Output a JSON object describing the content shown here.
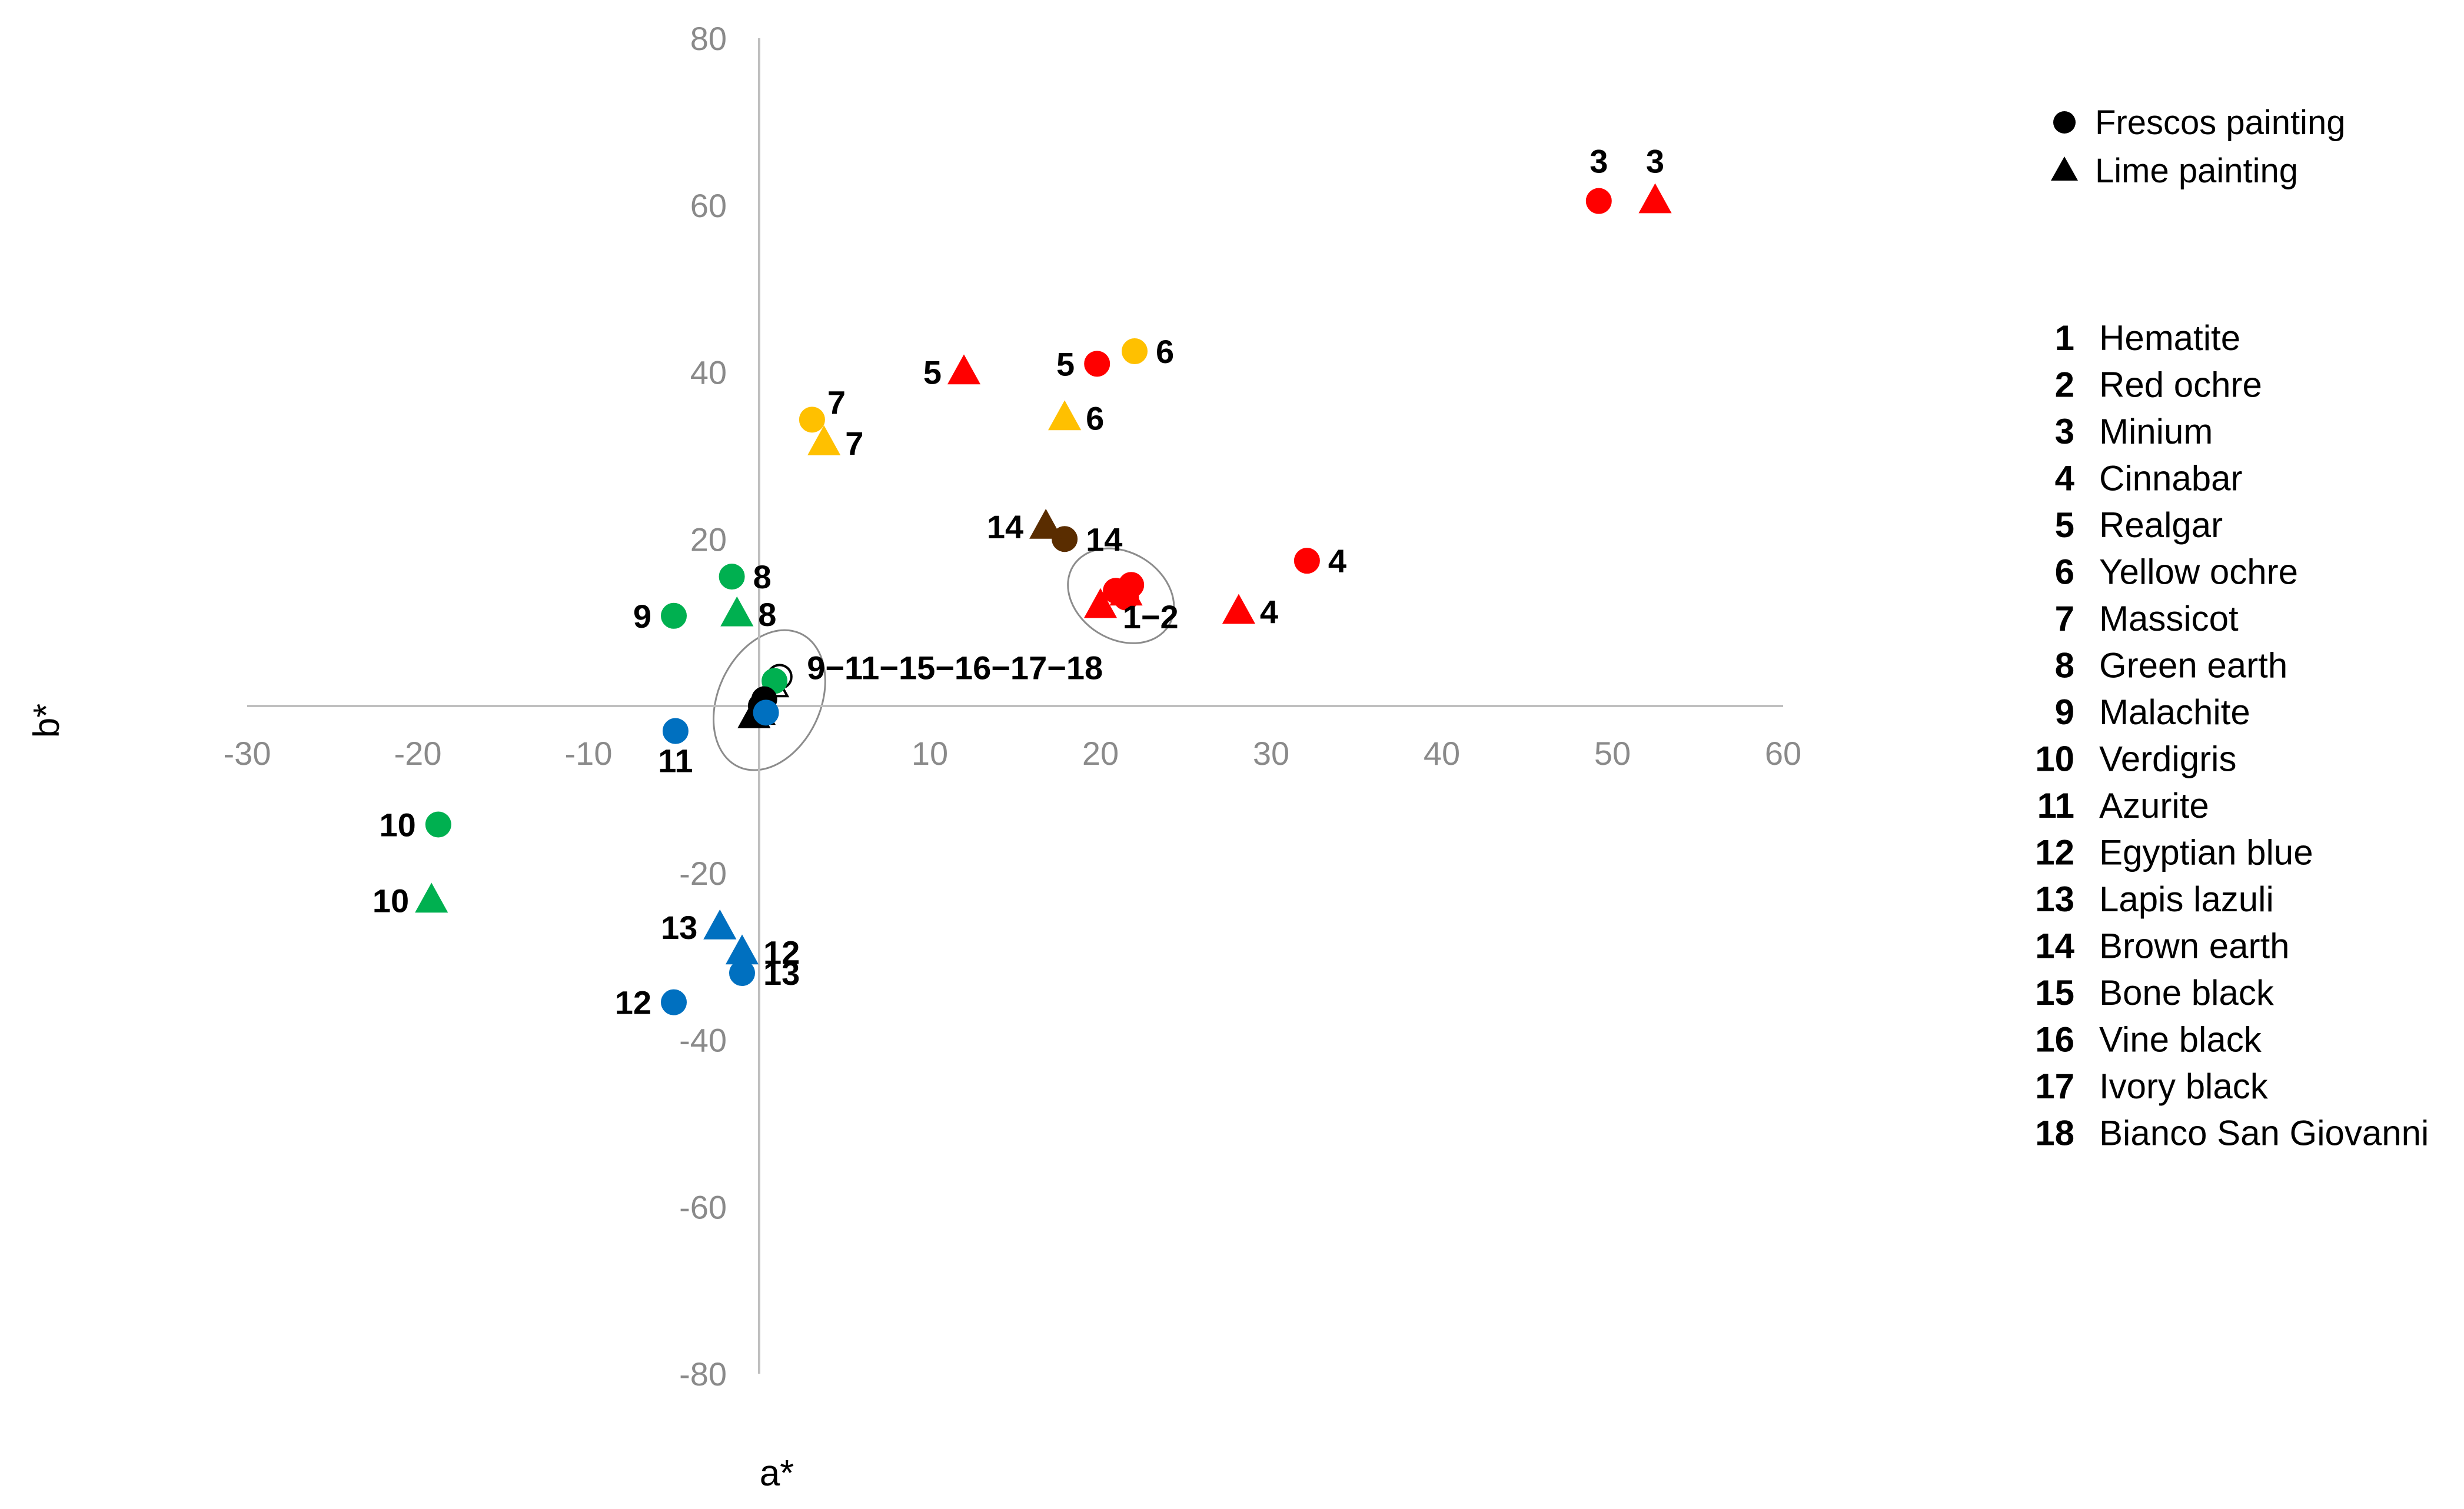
{
  "chart_data": {
    "type": "scatter",
    "xlabel": "a*",
    "ylabel": "b*",
    "xlim": [
      -30,
      60
    ],
    "ylim": [
      -80,
      80
    ],
    "x_ticks": [
      -30,
      -20,
      -10,
      10,
      20,
      30,
      40,
      50,
      60
    ],
    "y_ticks": [
      80,
      60,
      40,
      20,
      -20,
      -40,
      -60,
      -80
    ],
    "legend_position": "top-right",
    "marker_legend": [
      {
        "marker": "circle",
        "label": "Frescos painting"
      },
      {
        "marker": "triangle",
        "label": "Lime painting"
      }
    ],
    "pigment_key": [
      {
        "num": "1",
        "name": "Hematite"
      },
      {
        "num": "2",
        "name": "Red ochre"
      },
      {
        "num": "3",
        "name": "Minium"
      },
      {
        "num": "4",
        "name": "Cinnabar"
      },
      {
        "num": "5",
        "name": "Realgar"
      },
      {
        "num": "6",
        "name": "Yellow ochre"
      },
      {
        "num": "7",
        "name": "Massicot"
      },
      {
        "num": "8",
        "name": "Green earth"
      },
      {
        "num": "9",
        "name": "Malachite"
      },
      {
        "num": "10",
        "name": "Verdigris"
      },
      {
        "num": "11",
        "name": "Azurite"
      },
      {
        "num": "12",
        "name": "Egyptian blue"
      },
      {
        "num": "13",
        "name": "Lapis lazuli"
      },
      {
        "num": "14",
        "name": "Brown earth"
      },
      {
        "num": "15",
        "name": "Bone black"
      },
      {
        "num": "16",
        "name": "Vine black"
      },
      {
        "num": "17",
        "name": "Ivory black"
      },
      {
        "num": "18",
        "name": "Bianco San Giovanni"
      }
    ],
    "colors": {
      "red": "#ff0000",
      "yellow": "#ffc000",
      "green": "#00b050",
      "blue": "#0070c0",
      "brown": "#5a2d00",
      "black": "#000000",
      "white": "#ffffff"
    },
    "points": [
      {
        "x": 49.2,
        "y": 60.5,
        "marker": "circle",
        "color": "red",
        "label": "3",
        "label_pos": "above"
      },
      {
        "x": 52.5,
        "y": 60.5,
        "marker": "triangle",
        "color": "red",
        "label": "3",
        "label_pos": "above"
      },
      {
        "x": 32.1,
        "y": 17.4,
        "marker": "circle",
        "color": "red",
        "label": "4",
        "label_pos": "right"
      },
      {
        "x": 28.1,
        "y": 11.3,
        "marker": "triangle",
        "color": "red",
        "label": "4",
        "label_pos": "right"
      },
      {
        "x": 19.8,
        "y": 41.0,
        "marker": "circle",
        "color": "red",
        "label": "5",
        "label_pos": "left"
      },
      {
        "x": 12.0,
        "y": 40.0,
        "marker": "triangle",
        "color": "red",
        "label": "5",
        "label_pos": "left"
      },
      {
        "x": 22.0,
        "y": 42.5,
        "marker": "circle",
        "color": "yellow",
        "label": "6",
        "label_pos": "right"
      },
      {
        "x": 17.9,
        "y": 34.5,
        "marker": "triangle",
        "color": "yellow",
        "label": "6",
        "label_pos": "right"
      },
      {
        "x": 3.1,
        "y": 34.3,
        "marker": "circle",
        "color": "yellow",
        "label": "7",
        "label_pos": "upper-right"
      },
      {
        "x": 3.8,
        "y": 31.5,
        "marker": "triangle",
        "color": "yellow",
        "label": "7",
        "label_pos": "right"
      },
      {
        "x": 17.9,
        "y": 20.0,
        "marker": "circle",
        "color": "brown",
        "label": "14",
        "label_pos": "right"
      },
      {
        "x": 16.8,
        "y": 21.5,
        "marker": "triangle",
        "color": "brown",
        "label": "14",
        "label_pos": "left"
      },
      {
        "x": -1.6,
        "y": 15.5,
        "marker": "circle",
        "color": "green",
        "label": "8",
        "label_pos": "right"
      },
      {
        "x": -1.3,
        "y": 11.0,
        "marker": "triangle",
        "color": "green",
        "label": "8",
        "label_pos": "right"
      },
      {
        "x": -5.0,
        "y": 10.8,
        "marker": "circle",
        "color": "green",
        "label": "9",
        "label_pos": "left"
      },
      {
        "x": -18.8,
        "y": -14.2,
        "marker": "circle",
        "color": "green",
        "label": "10",
        "label_pos": "left"
      },
      {
        "x": -19.2,
        "y": -23.3,
        "marker": "triangle",
        "color": "green",
        "label": "10",
        "label_pos": "left"
      },
      {
        "x": -4.9,
        "y": -3.0,
        "marker": "circle",
        "color": "blue",
        "label": "11",
        "label_pos": "below"
      },
      {
        "x": -2.3,
        "y": -26.5,
        "marker": "triangle",
        "color": "blue",
        "label": "13",
        "label_pos": "left"
      },
      {
        "x": -1.0,
        "y": -29.5,
        "marker": "triangle",
        "color": "blue",
        "label": "12",
        "label_pos": "right"
      },
      {
        "x": -1.0,
        "y": -32.0,
        "marker": "circle",
        "color": "blue",
        "label": "13",
        "label_pos": "right"
      },
      {
        "x": -5.0,
        "y": -35.5,
        "marker": "circle",
        "color": "blue",
        "label": "12",
        "label_pos": "left"
      },
      {
        "x": 20.9,
        "y": 13.8,
        "marker": "circle",
        "color": "red",
        "label": "",
        "label_pos": "none"
      },
      {
        "x": 21.8,
        "y": 14.5,
        "marker": "circle",
        "color": "red",
        "label": "",
        "label_pos": "none"
      },
      {
        "x": 21.5,
        "y": 13.0,
        "marker": "circle",
        "color": "red",
        "label": "",
        "label_pos": "none"
      },
      {
        "x": 20.0,
        "y": 12.0,
        "marker": "triangle",
        "color": "red",
        "label": "",
        "label_pos": "none"
      },
      {
        "x": 21.5,
        "y": 13.5,
        "marker": "triangle",
        "color": "red",
        "label": "",
        "label_pos": "none"
      },
      {
        "x": 1.2,
        "y": 3.5,
        "marker": "circle",
        "color": "white",
        "label": "",
        "label_pos": "none"
      },
      {
        "x": 0.8,
        "y": 2.5,
        "marker": "triangle",
        "color": "white",
        "label": "",
        "label_pos": "none"
      },
      {
        "x": 0.9,
        "y": 3.0,
        "marker": "circle",
        "color": "green",
        "label": "",
        "label_pos": "none"
      },
      {
        "x": 0.1,
        "y": 0.0,
        "marker": "circle",
        "color": "black",
        "label": "",
        "label_pos": "none"
      },
      {
        "x": 0.3,
        "y": 0.8,
        "marker": "circle",
        "color": "black",
        "label": "",
        "label_pos": "none"
      },
      {
        "x": 0.0,
        "y": -0.8,
        "marker": "triangle",
        "color": "black",
        "label": "",
        "label_pos": "none"
      },
      {
        "x": -0.3,
        "y": -1.2,
        "marker": "triangle",
        "color": "black",
        "label": "",
        "label_pos": "none"
      },
      {
        "x": 0.4,
        "y": -0.8,
        "marker": "circle",
        "color": "blue",
        "label": "",
        "label_pos": "none"
      }
    ],
    "group_annotations": [
      {
        "label": "1−2",
        "ellipse": {
          "cx": 21.2,
          "cy": 13.2,
          "rx": 3.3,
          "ry": 5.2,
          "angle_deg": 32
        },
        "label_x": 21.3,
        "label_y": 9.3
      },
      {
        "label": "9−11−15−16−17−18",
        "ellipse": {
          "cx": 0.6,
          "cy": 0.7,
          "rx": 3.0,
          "ry": 8.8,
          "angle_deg": 25
        },
        "label_x": 2.8,
        "label_y": 3.2
      }
    ]
  }
}
